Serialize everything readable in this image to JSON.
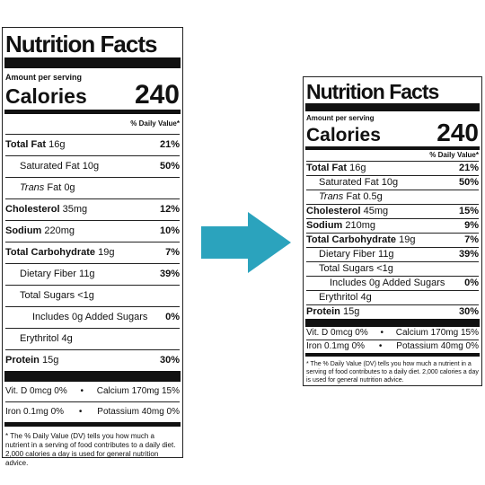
{
  "arrow_color": "#2ba3bd",
  "left_label": {
    "title": "Nutrition Facts",
    "amount_per_serving": "Amount per serving",
    "calories_label": "Calories",
    "calories_value": "240",
    "daily_value_header": "% Daily Value*",
    "rows": {
      "total_fat": {
        "name": "Total Fat",
        "amount": "16g",
        "pct": "21%"
      },
      "sat_fat": {
        "name": "Saturated Fat 10g",
        "pct": "50%"
      },
      "trans_fat": {
        "name_italic": "Trans",
        "name_rest": " Fat 0g"
      },
      "cholesterol": {
        "name": "Cholesterol",
        "amount": "35mg",
        "pct": "12%"
      },
      "sodium": {
        "name": "Sodium",
        "amount": "220mg",
        "pct": "10%"
      },
      "total_carb": {
        "name": "Total Carbohydrate",
        "amount": "19g",
        "pct": "7%"
      },
      "fiber": {
        "name": "Dietary Fiber 11g",
        "pct": "39%"
      },
      "total_sugars": {
        "name": "Total Sugars <1g"
      },
      "added_sugars": {
        "name": "Includes 0g Added Sugars",
        "pct": "0%"
      },
      "erythritol": {
        "name": "Erythritol 4g"
      },
      "protein": {
        "name": "Protein",
        "amount": "15g",
        "pct": "30%"
      }
    },
    "vitamins": [
      {
        "left": "Vit. D 0mcg 0%",
        "right": "Calcium 170mg 15%"
      },
      {
        "left": "Iron 0.1mg 0%",
        "right": "Potassium 40mg 0%"
      }
    ],
    "footnote": "* The % Daily Value (DV) tells you how much a nutrient in a serving of food contributes to a daily diet. 2,000 calories a day is used for general nutrition advice."
  },
  "right_label": {
    "title": "Nutrition Facts",
    "amount_per_serving": "Amount per serving",
    "calories_label": "Calories",
    "calories_value": "240",
    "daily_value_header": "% Daily Value*",
    "rows": {
      "total_fat": {
        "name": "Total Fat",
        "amount": "16g",
        "pct": "21%"
      },
      "sat_fat": {
        "name": "Saturated Fat 10g",
        "pct": "50%"
      },
      "trans_fat": {
        "name_italic": "Trans",
        "name_rest": " Fat 0.5g"
      },
      "cholesterol": {
        "name": "Cholesterol",
        "amount": "45mg",
        "pct": "15%"
      },
      "sodium": {
        "name": "Sodium",
        "amount": "210mg",
        "pct": "9%"
      },
      "total_carb": {
        "name": "Total Carbohydrate",
        "amount": "19g",
        "pct": "7%"
      },
      "fiber": {
        "name": "Dietary Fiber 11g",
        "pct": "39%"
      },
      "total_sugars": {
        "name": "Total Sugars <1g"
      },
      "added_sugars": {
        "name": "Includes 0g Added Sugars",
        "pct": "0%"
      },
      "erythritol": {
        "name": "Erythritol 4g"
      },
      "protein": {
        "name": "Protein",
        "amount": "15g",
        "pct": "30%"
      }
    },
    "vitamins": [
      {
        "left": "Vit. D 0mcg 0%",
        "right": "Calcium 170mg 15%"
      },
      {
        "left": "Iron 0.1mg 0%",
        "right": "Potassium 40mg 0%"
      }
    ],
    "footnote": "* The % Daily Value (DV) tells you how much a nutrient in a serving of food contributes to a daily diet. 2,000 calories a day is used for general nutrition advice."
  }
}
